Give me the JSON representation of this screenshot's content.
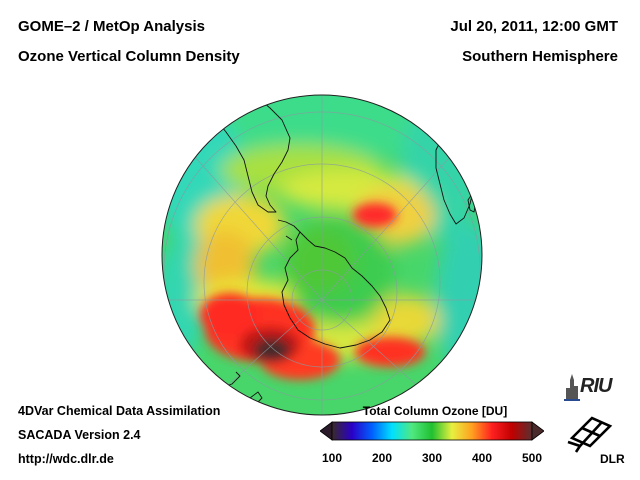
{
  "header": {
    "instrument": "GOME–2 / MetOp Analysis",
    "product": "Ozone Vertical Column Density",
    "datetime": "Jul 20, 2011, 12:00 GMT",
    "region": "Southern Hemisphere"
  },
  "footer": {
    "method": "4DVar Chemical Data Assimilation",
    "version": "SACADA Version 2.4",
    "url": "http://wdc.dlr.de"
  },
  "colorbar": {
    "title": "Total Column Ozone [DU]",
    "ticks": [
      "100",
      "200",
      "300",
      "400",
      "500"
    ],
    "min": 100,
    "max": 500,
    "stops": [
      "#3a2a2a",
      "#2a00c8",
      "#0060ff",
      "#00e0ff",
      "#50e880",
      "#20c030",
      "#e8f040",
      "#ffa020",
      "#ff2020",
      "#c00000",
      "#5a3030"
    ]
  },
  "logos": {
    "riu": "RIU",
    "dlr": "DLR"
  },
  "map": {
    "projection": "orthographic",
    "hemisphere": "south",
    "features": [
      "Antarctica",
      "South America",
      "Africa",
      "Australia"
    ]
  }
}
